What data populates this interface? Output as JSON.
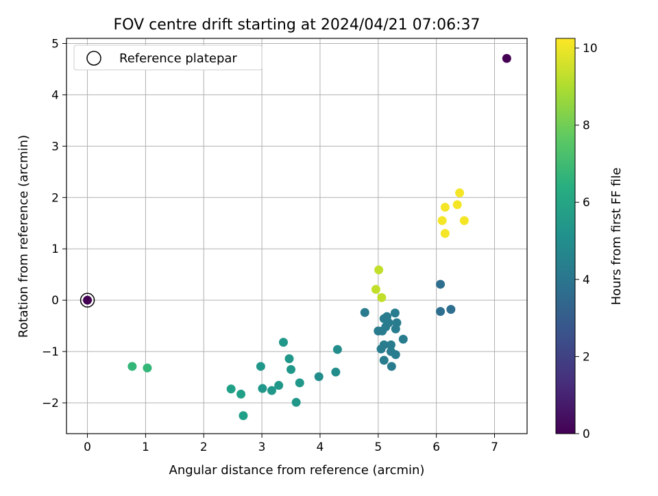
{
  "chart_data": {
    "type": "scatter",
    "title": "FOV centre drift starting at 2024/04/21 07:06:37",
    "xlabel": "Angular distance from reference (arcmin)",
    "ylabel": "Rotation from reference (arcmin)",
    "xlim": [
      -0.36,
      7.56
    ],
    "ylim": [
      -2.6,
      5.1
    ],
    "x_ticks": [
      0,
      1,
      2,
      3,
      4,
      5,
      6,
      7
    ],
    "y_ticks": [
      -2,
      -1,
      0,
      1,
      2,
      3,
      4,
      5
    ],
    "grid": true,
    "legend": {
      "placement": "upper-left",
      "entries": [
        "Reference platepar"
      ]
    },
    "reference_point": {
      "x": 0,
      "y": 0
    },
    "colorbar": {
      "label": "Hours from first FF file",
      "range": [
        0,
        10.25
      ],
      "ticks": [
        0,
        2,
        4,
        6,
        8,
        10
      ],
      "colormap": "viridis"
    },
    "points": [
      {
        "x": 0.0,
        "y": 0.0,
        "h": 0.0
      },
      {
        "x": 7.21,
        "y": 4.71,
        "h": 0.0
      },
      {
        "x": 6.07,
        "y": 0.31,
        "h": 3.7
      },
      {
        "x": 6.07,
        "y": -0.22,
        "h": 3.7
      },
      {
        "x": 6.25,
        "y": -0.18,
        "h": 3.7
      },
      {
        "x": 4.77,
        "y": -0.24,
        "h": 4.3
      },
      {
        "x": 5.29,
        "y": -0.25,
        "h": 4.3
      },
      {
        "x": 5.1,
        "y": -0.36,
        "h": 4.3
      },
      {
        "x": 5.15,
        "y": -0.32,
        "h": 4.3
      },
      {
        "x": 5.32,
        "y": -0.44,
        "h": 4.3
      },
      {
        "x": 5.18,
        "y": -0.44,
        "h": 4.3
      },
      {
        "x": 5.13,
        "y": -0.52,
        "h": 4.3
      },
      {
        "x": 5.3,
        "y": -0.56,
        "h": 4.3
      },
      {
        "x": 5.0,
        "y": -0.6,
        "h": 4.3
      },
      {
        "x": 5.07,
        "y": -0.6,
        "h": 4.3
      },
      {
        "x": 5.43,
        "y": -0.76,
        "h": 4.3
      },
      {
        "x": 5.1,
        "y": -0.87,
        "h": 4.3
      },
      {
        "x": 5.22,
        "y": -0.87,
        "h": 4.3
      },
      {
        "x": 5.05,
        "y": -0.95,
        "h": 4.3
      },
      {
        "x": 5.22,
        "y": -1.0,
        "h": 4.3
      },
      {
        "x": 5.3,
        "y": -1.06,
        "h": 4.3
      },
      {
        "x": 5.1,
        "y": -1.17,
        "h": 4.3
      },
      {
        "x": 5.23,
        "y": -1.29,
        "h": 4.3
      },
      {
        "x": 4.3,
        "y": -0.96,
        "h": 5.0
      },
      {
        "x": 4.27,
        "y": -1.4,
        "h": 5.0
      },
      {
        "x": 3.98,
        "y": -1.49,
        "h": 5.0
      },
      {
        "x": 3.37,
        "y": -0.82,
        "h": 5.4
      },
      {
        "x": 3.47,
        "y": -1.14,
        "h": 5.4
      },
      {
        "x": 3.5,
        "y": -1.35,
        "h": 5.4
      },
      {
        "x": 2.98,
        "y": -1.29,
        "h": 5.4
      },
      {
        "x": 3.65,
        "y": -1.61,
        "h": 5.4
      },
      {
        "x": 3.29,
        "y": -1.66,
        "h": 5.4
      },
      {
        "x": 3.01,
        "y": -1.72,
        "h": 5.4
      },
      {
        "x": 3.17,
        "y": -1.76,
        "h": 5.4
      },
      {
        "x": 3.59,
        "y": -1.99,
        "h": 5.4
      },
      {
        "x": 2.47,
        "y": -1.73,
        "h": 5.8
      },
      {
        "x": 2.64,
        "y": -1.83,
        "h": 5.8
      },
      {
        "x": 2.68,
        "y": -2.25,
        "h": 5.8
      },
      {
        "x": 0.77,
        "y": -1.29,
        "h": 6.8
      },
      {
        "x": 1.03,
        "y": -1.32,
        "h": 6.8
      },
      {
        "x": 5.01,
        "y": 0.59,
        "h": 9.3
      },
      {
        "x": 4.96,
        "y": 0.21,
        "h": 9.3
      },
      {
        "x": 5.06,
        "y": 0.05,
        "h": 9.3
      },
      {
        "x": 6.4,
        "y": 2.09,
        "h": 10.1
      },
      {
        "x": 6.15,
        "y": 1.81,
        "h": 10.1
      },
      {
        "x": 6.36,
        "y": 1.86,
        "h": 10.1
      },
      {
        "x": 6.1,
        "y": 1.55,
        "h": 10.1
      },
      {
        "x": 6.48,
        "y": 1.55,
        "h": 10.1
      },
      {
        "x": 6.15,
        "y": 1.3,
        "h": 10.1
      }
    ]
  }
}
